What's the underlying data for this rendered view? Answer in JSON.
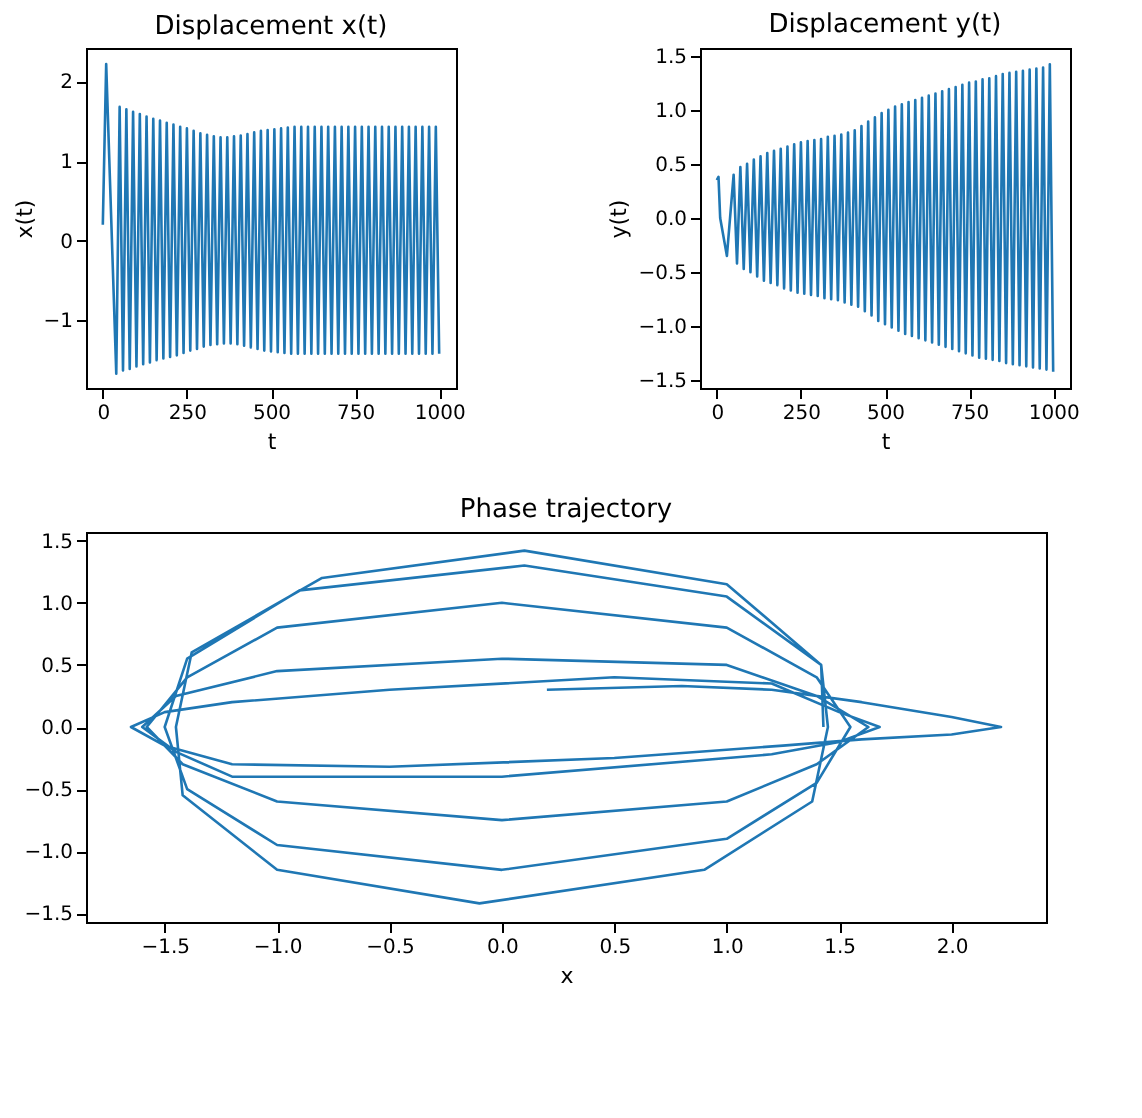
{
  "chart_data": [
    {
      "type": "line",
      "title": "Displacement x(t)",
      "xlabel": "t",
      "ylabel": "x(t)",
      "xlim": [
        -50,
        1050
      ],
      "ylim": [
        -1.85,
        2.42
      ],
      "xticks": [
        0,
        250,
        500,
        750,
        1000
      ],
      "yticks": [
        {
          "value": -1,
          "label": "−1"
        },
        0,
        1,
        2
      ],
      "grid": false,
      "x": [
        0,
        10,
        40,
        50,
        60,
        70,
        80,
        90,
        100,
        110,
        120,
        130,
        140,
        150,
        160,
        170,
        180,
        190,
        200,
        210,
        220,
        230,
        240,
        250,
        260,
        270,
        280,
        290,
        300,
        310,
        320,
        330,
        340,
        350,
        360,
        370,
        380,
        390,
        400,
        410,
        420,
        430,
        440,
        450,
        460,
        470,
        480,
        490,
        500,
        510,
        520,
        530,
        540,
        550,
        560,
        570,
        580,
        590,
        600,
        610,
        620,
        630,
        640,
        650,
        660,
        670,
        680,
        690,
        700,
        710,
        720,
        730,
        740,
        750,
        760,
        770,
        780,
        790,
        800,
        810,
        820,
        830,
        840,
        850,
        860,
        870,
        880,
        890,
        900,
        910,
        920,
        930,
        940,
        950,
        960,
        970,
        980,
        990,
        1000
      ],
      "series": [
        {
          "color": "#1f77b4",
          "values": [
            0.2,
            2.22,
            -1.67,
            1.68,
            -1.63,
            1.65,
            -1.61,
            1.62,
            -1.58,
            1.59,
            -1.55,
            1.56,
            -1.53,
            1.53,
            -1.5,
            1.51,
            -1.48,
            1.48,
            -1.46,
            1.46,
            -1.44,
            1.43,
            -1.41,
            1.41,
            -1.38,
            1.38,
            -1.36,
            1.35,
            -1.33,
            1.33,
            -1.31,
            1.31,
            -1.3,
            1.3,
            -1.29,
            1.3,
            -1.29,
            1.31,
            -1.3,
            1.32,
            -1.32,
            1.34,
            -1.34,
            1.36,
            -1.36,
            1.38,
            -1.38,
            1.39,
            -1.39,
            1.4,
            -1.4,
            1.41,
            -1.41,
            1.42,
            -1.42,
            1.43,
            -1.42,
            1.43,
            -1.42,
            1.43,
            -1.42,
            1.43,
            -1.42,
            1.43,
            -1.42,
            1.43,
            -1.42,
            1.43,
            -1.42,
            1.43,
            -1.42,
            1.43,
            -1.42,
            1.43,
            -1.42,
            1.43,
            -1.42,
            1.43,
            -1.42,
            1.43,
            -1.42,
            1.43,
            -1.42,
            1.43,
            -1.42,
            1.43,
            -1.42,
            1.43,
            -1.42,
            1.43,
            -1.42,
            1.43,
            -1.42,
            1.43,
            -1.42,
            1.43,
            -1.42,
            1.43,
            -1.42
          ]
        }
      ]
    },
    {
      "type": "line",
      "title": "Displacement y(t)",
      "xlabel": "t",
      "ylabel": "y(t)",
      "xlim": [
        -50,
        1050
      ],
      "ylim": [
        -1.57,
        1.57
      ],
      "xticks": [
        0,
        250,
        500,
        750,
        1000
      ],
      "yticks": [
        {
          "value": -1.5,
          "label": "−1.5"
        },
        {
          "value": -1,
          "label": "−1.0"
        },
        {
          "value": -0.5,
          "label": "−0.5"
        },
        {
          "value": 0,
          "label": "0.0"
        },
        0.5,
        {
          "value": 1,
          "label": "1.0"
        },
        1.5
      ],
      "grid": false,
      "x": [
        0,
        5,
        10,
        30,
        50,
        60,
        70,
        80,
        90,
        100,
        110,
        120,
        130,
        140,
        150,
        160,
        170,
        180,
        190,
        200,
        210,
        220,
        230,
        240,
        250,
        260,
        270,
        280,
        290,
        300,
        310,
        320,
        330,
        340,
        350,
        360,
        370,
        380,
        390,
        400,
        410,
        420,
        430,
        440,
        450,
        460,
        470,
        480,
        490,
        500,
        510,
        520,
        530,
        540,
        550,
        560,
        570,
        580,
        590,
        600,
        610,
        620,
        630,
        640,
        650,
        660,
        670,
        680,
        690,
        700,
        710,
        720,
        730,
        740,
        750,
        760,
        770,
        780,
        790,
        800,
        810,
        820,
        830,
        840,
        850,
        860,
        870,
        880,
        890,
        900,
        910,
        920,
        930,
        940,
        950,
        960,
        970,
        980,
        990,
        1000
      ],
      "series": [
        {
          "color": "#1f77b4",
          "values": [
            0.35,
            0.38,
            0.0,
            -0.35,
            0.4,
            -0.42,
            0.47,
            -0.47,
            0.5,
            -0.5,
            0.54,
            -0.54,
            0.57,
            -0.58,
            0.6,
            -0.6,
            0.62,
            -0.62,
            0.64,
            -0.65,
            0.66,
            -0.67,
            0.68,
            -0.69,
            0.7,
            -0.7,
            0.71,
            -0.71,
            0.72,
            -0.72,
            0.73,
            -0.74,
            0.75,
            -0.75,
            0.76,
            -0.76,
            0.77,
            -0.78,
            0.79,
            -0.8,
            0.81,
            -0.82,
            0.85,
            -0.86,
            0.89,
            -0.9,
            0.93,
            -0.95,
            0.97,
            -0.98,
            1.0,
            -1.01,
            1.03,
            -1.04,
            1.05,
            -1.07,
            1.07,
            -1.09,
            1.09,
            -1.11,
            1.11,
            -1.13,
            1.13,
            -1.15,
            1.15,
            -1.17,
            1.17,
            -1.19,
            1.19,
            -1.21,
            1.21,
            -1.23,
            1.23,
            -1.25,
            1.25,
            -1.27,
            1.26,
            -1.29,
            1.28,
            -1.3,
            1.29,
            -1.31,
            1.31,
            -1.32,
            1.33,
            -1.34,
            1.34,
            -1.35,
            1.35,
            -1.36,
            1.36,
            -1.37,
            1.37,
            -1.38,
            1.38,
            -1.39,
            1.39,
            -1.4,
            1.42,
            -1.42
          ]
        }
      ]
    },
    {
      "type": "line",
      "title": "Phase trajectory",
      "xlabel": "x",
      "xlim": [
        -1.85,
        2.42
      ],
      "ylim": [
        -1.57,
        1.57
      ],
      "xticks": [
        {
          "value": -1.5,
          "label": "−1.5"
        },
        {
          "value": -1,
          "label": "−1.0"
        },
        {
          "value": -0.5,
          "label": "−0.5"
        },
        {
          "value": 0,
          "label": "0.0"
        },
        0.5,
        {
          "value": 1,
          "label": "1.0"
        },
        1.5,
        {
          "value": 2,
          "label": "2.0"
        }
      ],
      "yticks": [
        {
          "value": -1.5,
          "label": "−1.5"
        },
        {
          "value": -1,
          "label": "−1.0"
        },
        {
          "value": -0.5,
          "label": "−0.5"
        },
        {
          "value": 0,
          "label": "0.0"
        },
        0.5,
        {
          "value": 1,
          "label": "1.0"
        },
        1.5
      ],
      "grid": false,
      "x": [
        0.2,
        0.8,
        1.2,
        1.6,
        2.0,
        2.22,
        2.0,
        1.6,
        1.25,
        0.5,
        -0.5,
        -1.2,
        -1.5,
        -1.65,
        -1.5,
        -1.2,
        -0.5,
        0.5,
        1.2,
        1.5,
        1.68,
        1.5,
        1.2,
        0.0,
        -1.2,
        -1.45,
        -1.6,
        -1.45,
        -1.0,
        0.0,
        1.0,
        1.4,
        1.63,
        1.4,
        1.0,
        0.0,
        -1.0,
        -1.42,
        -1.58,
        -1.4,
        -1.0,
        0.0,
        1.0,
        1.4,
        1.55,
        1.4,
        1.0,
        0.0,
        -1.0,
        -1.4,
        -1.5,
        -1.4,
        -0.9,
        0.1,
        1.0,
        1.42,
        1.45,
        1.38,
        0.9,
        -0.1,
        -1.0,
        -1.42,
        -1.45,
        -1.38,
        -0.8,
        0.1,
        1.0,
        1.42,
        1.43
      ],
      "series": [
        {
          "color": "#1f77b4",
          "values": [
            0.3,
            0.33,
            0.3,
            0.2,
            0.08,
            0.0,
            -0.06,
            -0.1,
            -0.15,
            -0.25,
            -0.32,
            -0.3,
            -0.15,
            0.0,
            0.12,
            0.2,
            0.3,
            0.4,
            0.35,
            0.12,
            0.0,
            -0.12,
            -0.22,
            -0.4,
            -0.4,
            -0.2,
            0.0,
            0.25,
            0.45,
            0.55,
            0.5,
            0.25,
            0.0,
            -0.3,
            -0.6,
            -0.75,
            -0.6,
            -0.3,
            0.0,
            0.4,
            0.8,
            1.0,
            0.8,
            0.4,
            0.0,
            -0.45,
            -0.9,
            -1.15,
            -0.95,
            -0.5,
            0.0,
            0.55,
            1.1,
            1.3,
            1.05,
            0.5,
            0.0,
            -0.6,
            -1.15,
            -1.42,
            -1.15,
            -0.55,
            0.0,
            0.6,
            1.2,
            1.42,
            1.15,
            0.5,
            0.0
          ]
        }
      ]
    }
  ]
}
